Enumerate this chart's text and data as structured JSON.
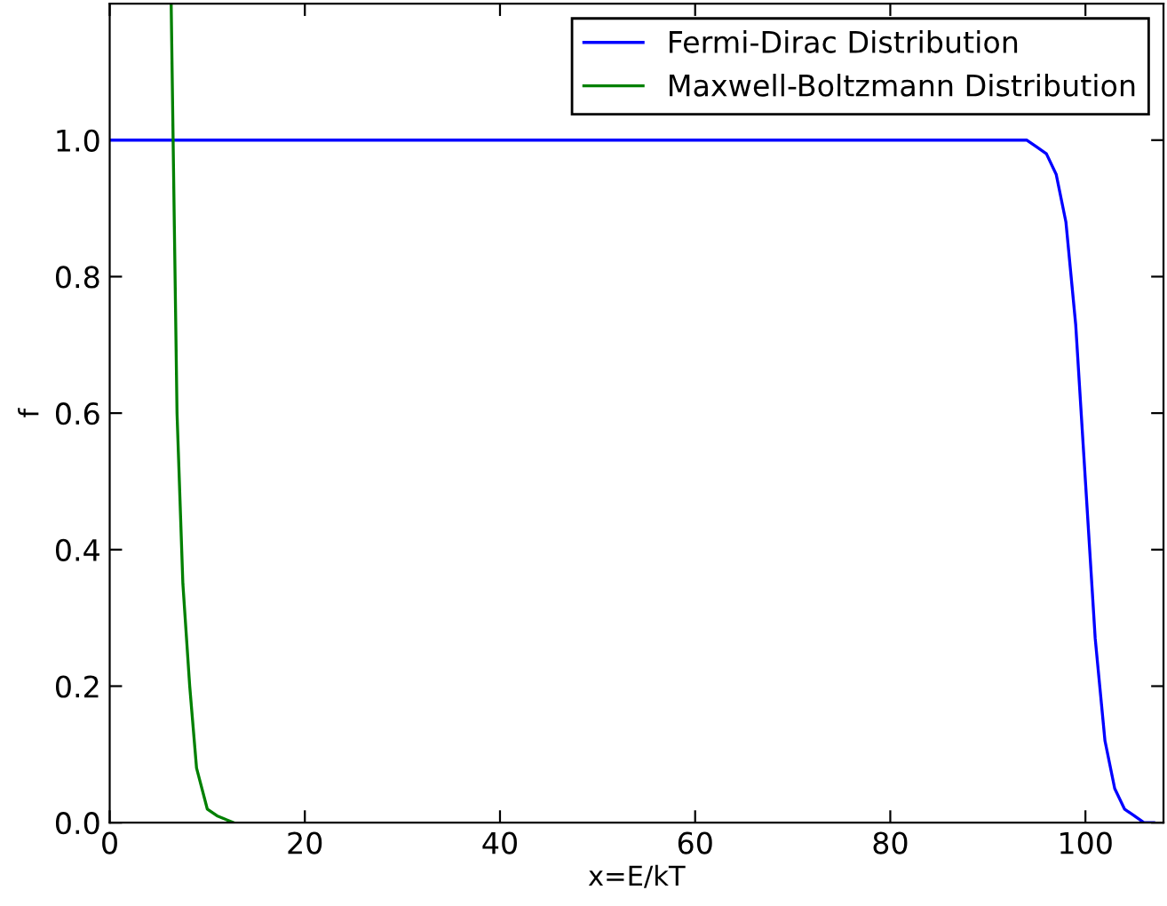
{
  "chart_data": {
    "type": "line",
    "xlabel": "x=E/kT",
    "ylabel": "f",
    "series": [
      {
        "name": "Fermi-Dirac Distribution",
        "color": "#0000ff",
        "x": [
          0,
          20,
          40,
          60,
          80,
          94,
          95,
          96,
          97,
          98,
          99,
          100,
          101,
          102,
          103,
          104,
          105,
          106,
          107
        ],
        "values": [
          1.0,
          1.0,
          1.0,
          1.0,
          1.0,
          1.0,
          0.99,
          0.98,
          0.95,
          0.88,
          0.73,
          0.5,
          0.27,
          0.12,
          0.05,
          0.02,
          0.01,
          0.0,
          0.0
        ]
      },
      {
        "name": "Maxwell-Boltzmann Distribution",
        "color": "#008000",
        "x": [
          6.3,
          6.9,
          7.5,
          8.2,
          8.9,
          10,
          11,
          12.7
        ],
        "values": [
          1.2,
          0.6,
          0.35,
          0.2,
          0.08,
          0.02,
          0.01,
          0.0
        ]
      }
    ],
    "xlim": [
      0,
      108
    ],
    "ylim": [
      0,
      1.2
    ],
    "xticks": [
      0,
      20,
      40,
      60,
      80,
      100
    ],
    "yticks": [
      {
        "value": 0,
        "label": "0.0"
      },
      0.2,
      0.4,
      0.6,
      0.8,
      {
        "value": 1,
        "label": "1.0"
      }
    ],
    "legend": "top right",
    "grid": false,
    "marker": "none",
    "line_style": "solid"
  }
}
